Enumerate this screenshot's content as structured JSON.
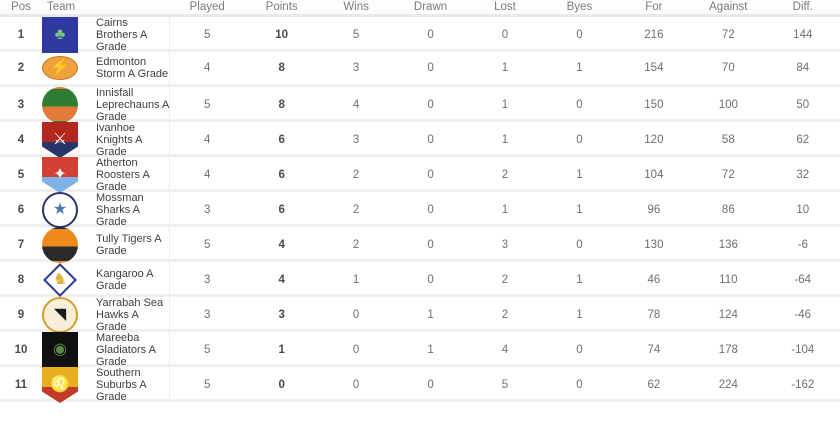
{
  "table": {
    "columns": {
      "pos": "Pos",
      "team": "Team",
      "played": "Played",
      "points": "Points",
      "wins": "Wins",
      "drawn": "Drawn",
      "lost": "Lost",
      "byes": "Byes",
      "for": "For",
      "against": "Against",
      "diff": "Diff."
    },
    "rows": [
      {
        "pos": "1",
        "team": "Cairns Brothers A Grade",
        "logo": {
          "name": "cairns-brothers-logo",
          "shape": "square",
          "bg": "#2f3aa0",
          "glyph": "♣",
          "glyph_color": "#7bc67e"
        },
        "played": "5",
        "points": "10",
        "wins": "5",
        "drawn": "0",
        "lost": "0",
        "byes": "0",
        "for": "216",
        "against": "72",
        "diff": "144"
      },
      {
        "pos": "2",
        "team": "Edmonton Storm A Grade",
        "logo": {
          "name": "edmonton-storm-logo",
          "shape": "oval",
          "bg": "#f0a33c",
          "border": "#c2701f",
          "glyph": "⚡",
          "glyph_color": "#5b2d8e"
        },
        "played": "4",
        "points": "8",
        "wins": "3",
        "drawn": "0",
        "lost": "1",
        "byes": "1",
        "for": "154",
        "against": "70",
        "diff": "84"
      },
      {
        "pos": "3",
        "team": "Innisfail Leprechauns A Grade",
        "logo": {
          "name": "innisfail-leprechauns-logo",
          "shape": "circle",
          "bg": "#2e7d32",
          "bg2": "#e07b39",
          "glyph": "",
          "glyph_color": ""
        },
        "played": "5",
        "points": "8",
        "wins": "4",
        "drawn": "0",
        "lost": "1",
        "byes": "0",
        "for": "150",
        "against": "100",
        "diff": "50"
      },
      {
        "pos": "4",
        "team": "Ivanhoe Knights A Grade",
        "logo": {
          "name": "ivanhoe-knights-logo",
          "shape": "shield",
          "bg": "#b3281e",
          "bg2": "#27356b",
          "glyph": "⚔",
          "glyph_color": "#ffffff"
        },
        "played": "4",
        "points": "6",
        "wins": "3",
        "drawn": "0",
        "lost": "1",
        "byes": "0",
        "for": "120",
        "against": "58",
        "diff": "62"
      },
      {
        "pos": "5",
        "team": "Atherton Roosters A Grade",
        "logo": {
          "name": "atherton-roosters-logo",
          "shape": "shield",
          "bg": "#d23f33",
          "bg2": "#7fb2e5",
          "glyph": "✦",
          "glyph_color": "#ffffff"
        },
        "played": "4",
        "points": "6",
        "wins": "2",
        "drawn": "0",
        "lost": "2",
        "byes": "1",
        "for": "104",
        "against": "72",
        "diff": "32"
      },
      {
        "pos": "6",
        "team": "Mossman Sharks A Grade",
        "logo": {
          "name": "mossman-sharks-logo",
          "shape": "circle",
          "bg": "#ffffff",
          "border": "#27356b",
          "glyph": "★",
          "glyph_color": "#4a7ab5"
        },
        "played": "3",
        "points": "6",
        "wins": "2",
        "drawn": "0",
        "lost": "1",
        "byes": "1",
        "for": "96",
        "against": "86",
        "diff": "10"
      },
      {
        "pos": "7",
        "team": "Tully Tigers A Grade",
        "logo": {
          "name": "tully-tigers-logo",
          "shape": "circle",
          "bg": "#ef8a1d",
          "bg2": "#2b2b2b",
          "glyph": "",
          "glyph_color": ""
        },
        "played": "5",
        "points": "4",
        "wins": "2",
        "drawn": "0",
        "lost": "3",
        "byes": "0",
        "for": "130",
        "against": "136",
        "diff": "-6"
      },
      {
        "pos": "8",
        "team": "Kangaroo A Grade",
        "logo": {
          "name": "kangaroo-logo",
          "shape": "diamond",
          "bg": "#ffffff",
          "border": "#2b3990",
          "glyph": "♞",
          "glyph_color": "#d9b23a"
        },
        "played": "3",
        "points": "4",
        "wins": "1",
        "drawn": "0",
        "lost": "2",
        "byes": "1",
        "for": "46",
        "against": "110",
        "diff": "-64"
      },
      {
        "pos": "9",
        "team": "Yarrabah Sea Hawks A Grade",
        "logo": {
          "name": "yarrabah-sea-hawks-logo",
          "shape": "circle",
          "bg": "#f7efd8",
          "border": "#cf9f2e",
          "glyph": "◥",
          "glyph_color": "#1c1c1c"
        },
        "played": "3",
        "points": "3",
        "wins": "0",
        "drawn": "1",
        "lost": "2",
        "byes": "1",
        "for": "78",
        "against": "124",
        "diff": "-46"
      },
      {
        "pos": "10",
        "team": "Mareeba Gladiators A Grade",
        "logo": {
          "name": "mareeba-gladiators-logo",
          "shape": "square",
          "bg": "#101010",
          "glyph": "◉",
          "glyph_color": "#5a8a4a"
        },
        "played": "5",
        "points": "1",
        "wins": "0",
        "drawn": "1",
        "lost": "4",
        "byes": "0",
        "for": "74",
        "against": "178",
        "diff": "-104"
      },
      {
        "pos": "11",
        "team": "Southern Suburbs A Grade",
        "logo": {
          "name": "southern-suburbs-logo",
          "shape": "shield",
          "bg": "#e8b021",
          "bg2": "#c23a2a",
          "glyph": "♌",
          "glyph_color": "#7a1510"
        },
        "played": "5",
        "points": "0",
        "wins": "0",
        "drawn": "0",
        "lost": "5",
        "byes": "0",
        "for": "62",
        "against": "224",
        "diff": "-162"
      }
    ]
  },
  "colors": {
    "row_background": "#ffffff",
    "separator": "#efefef",
    "header_text": "#7a7a7a",
    "body_text": "#6f6f6f",
    "emphasis_text": "#4a4a4a"
  }
}
